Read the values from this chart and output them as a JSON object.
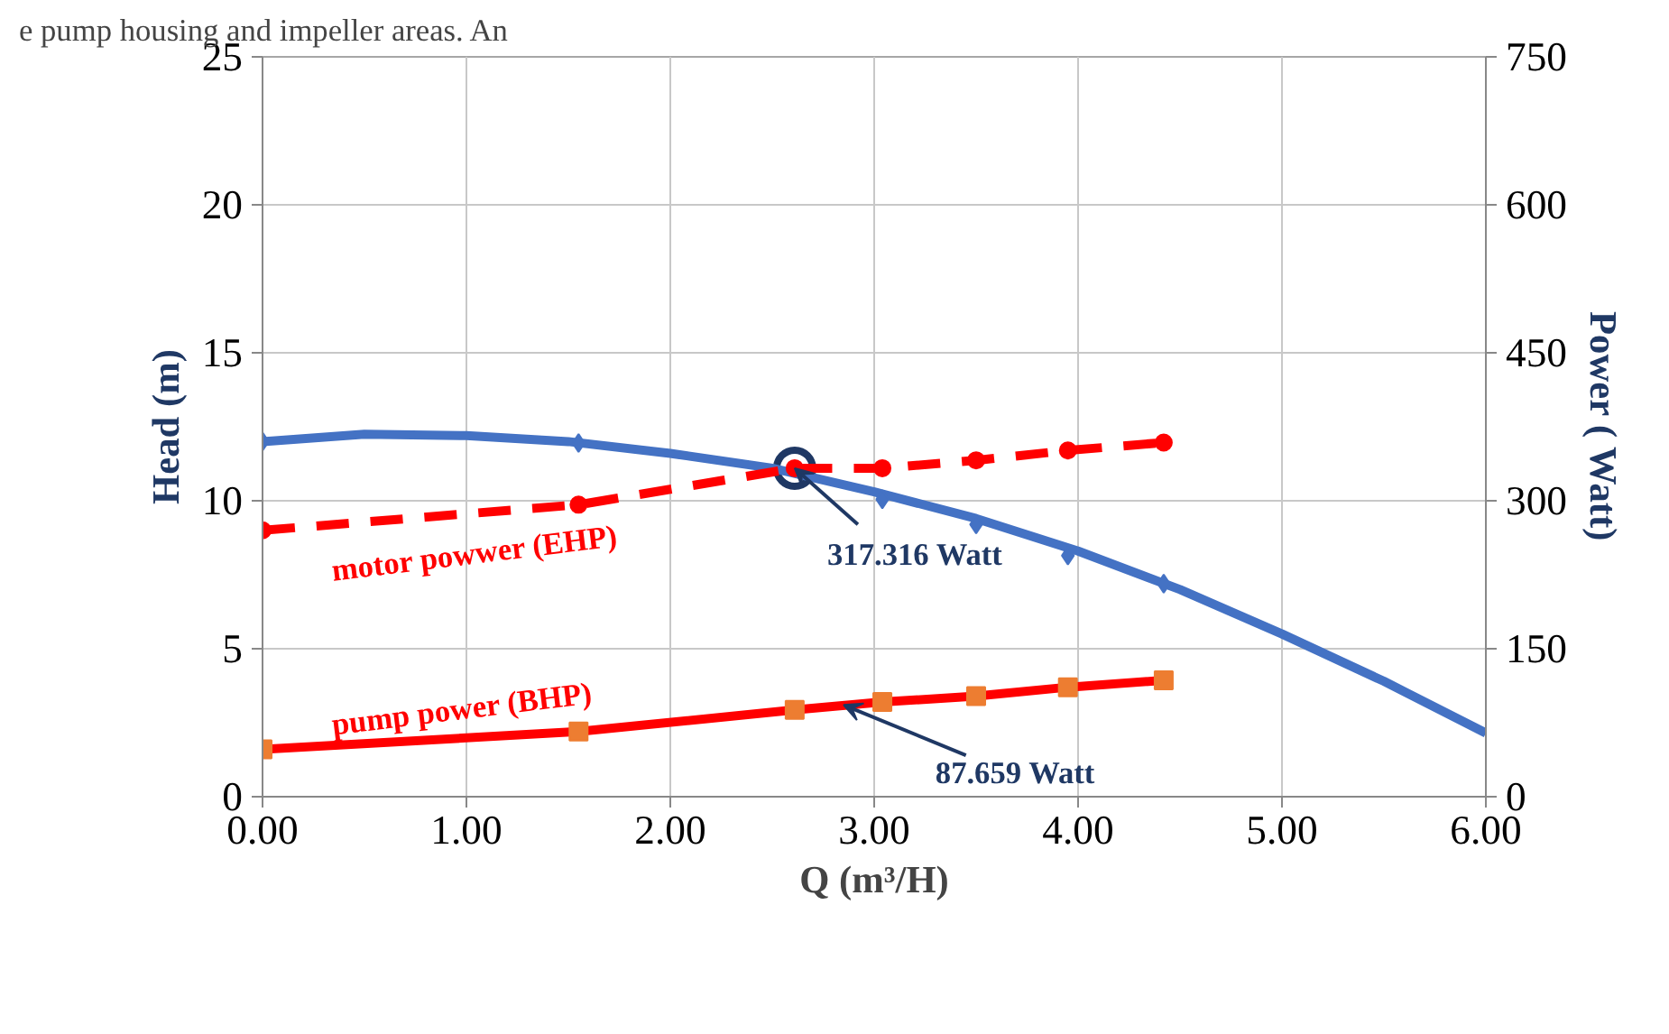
{
  "chart_data": {
    "type": "line",
    "xlabel": "Q (m³/H)",
    "ylabel": "Head (m)",
    "y2label": "Power ( Watt)",
    "xlim": [
      0,
      6
    ],
    "xticks": [
      {
        "value": 0,
        "label": "0.00"
      },
      {
        "value": 1,
        "label": "1.00"
      },
      {
        "value": 2,
        "label": "2.00"
      },
      {
        "value": 3,
        "label": "3.00"
      },
      {
        "value": 4,
        "label": "4.00"
      },
      {
        "value": 5,
        "label": "5.00"
      },
      {
        "value": 6,
        "label": "6.00"
      }
    ],
    "ylim": [
      0,
      25
    ],
    "yticks": [
      0,
      5,
      10,
      15,
      20,
      25
    ],
    "y2lim": [
      0,
      750
    ],
    "y2ticks": [
      0,
      150,
      300,
      450,
      600,
      750
    ],
    "grid": true,
    "legend": false,
    "series": [
      {
        "color": "#4472c4",
        "marker": "none",
        "x": [
          0,
          0.5,
          1,
          1.5,
          2,
          2.5,
          3,
          3.5,
          4,
          4.5,
          5,
          5.5,
          6
        ],
        "values": [
          12.0,
          12.25,
          12.2,
          12.0,
          11.6,
          11.1,
          10.3,
          9.4,
          8.3,
          7.0,
          5.5,
          3.9,
          2.15
        ]
      },
      {
        "type": "scatter",
        "color": "#4472c4",
        "marker": "diamond",
        "x": [
          0,
          1.55,
          2.61,
          3.04,
          3.5,
          3.95,
          4.42
        ],
        "values": [
          12.0,
          11.95,
          null,
          10.05,
          9.2,
          8.15,
          7.2
        ]
      },
      {
        "name": "motor powwer (EHP)",
        "axis": "y2",
        "color": "#ff0000",
        "marker": "circle",
        "line_style": "dashed",
        "x": [
          0,
          1.55,
          2.61,
          3.04,
          3.5,
          3.95,
          4.42
        ],
        "values": [
          270,
          296,
          333,
          333,
          341,
          351,
          359
        ]
      },
      {
        "name": "pump power (BHP)",
        "axis": "y2",
        "color": "#ff0000",
        "marker": "none",
        "x": [
          0,
          1.55,
          2.61,
          3.04,
          3.5,
          3.95,
          4.42
        ],
        "values": [
          48,
          66,
          88,
          96,
          102,
          111,
          118
        ]
      },
      {
        "type": "scatter",
        "axis": "y2",
        "color": "#ed7d31",
        "marker": "square",
        "x": [
          0,
          1.55,
          2.61,
          3.04,
          3.5,
          3.95,
          4.42
        ],
        "values": [
          48,
          66,
          88,
          96,
          102,
          111,
          118
        ]
      }
    ],
    "annotations": [
      "e pump housing and impeller areas. An",
      {
        "text": "317.316 Watt",
        "x": 2.61,
        "y": 11.1
      },
      {
        "text": "87.659 Watt",
        "x": 2.85,
        "y": 3.1
      }
    ]
  }
}
